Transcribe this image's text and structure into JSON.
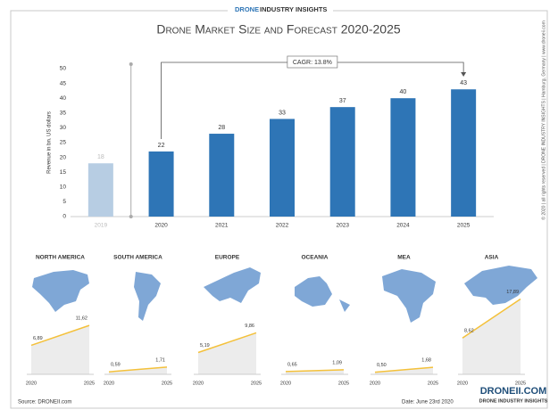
{
  "header": {
    "brand_1": "DRONE",
    "brand_2": "INDUSTRY INSIGHTS"
  },
  "side_note": "© 2020 | all rights reserved | DRONE INDUSTRY INSIGHTS | Hamburg, Germany | www.droneii.com",
  "chart_data": [
    {
      "type": "bar",
      "title": "Drone Market Size and Forecast 2020-2025",
      "y_label": "Revenue in bn. US dollars",
      "categories": [
        "2019",
        "2020",
        "2021",
        "2022",
        "2023",
        "2024",
        "2025"
      ],
      "values": [
        18,
        22,
        28,
        33,
        37,
        40,
        43
      ],
      "colors": [
        "#b7cde3",
        "#2e75b6",
        "#2e75b6",
        "#2e75b6",
        "#2e75b6",
        "#2e75b6",
        "#2e75b6"
      ],
      "ylim": [
        0,
        50
      ],
      "yticks": [
        0,
        5,
        10,
        15,
        20,
        25,
        30,
        35,
        40,
        45,
        50
      ],
      "annotation": "CAGR: 13.8%"
    },
    {
      "type": "line",
      "title": "NORTH AMERICA",
      "categories": [
        "2020",
        "2025"
      ],
      "values": [
        6.89,
        11.62
      ],
      "value_labels": [
        "6,89",
        "11,62"
      ],
      "ylim": [
        0,
        18
      ],
      "color": "#f4c13b"
    },
    {
      "type": "line",
      "title": "SOUTH AMERICA",
      "categories": [
        "2020",
        "2025"
      ],
      "values": [
        0.59,
        1.71
      ],
      "value_labels": [
        "0,59",
        "1,71"
      ],
      "ylim": [
        0,
        18
      ],
      "color": "#f4c13b"
    },
    {
      "type": "line",
      "title": "EUROPE",
      "categories": [
        "2020",
        "2025"
      ],
      "values": [
        5.19,
        9.86
      ],
      "value_labels": [
        "5,19",
        "9,86"
      ],
      "ylim": [
        0,
        18
      ],
      "color": "#f4c13b"
    },
    {
      "type": "line",
      "title": "OCEANIA",
      "categories": [
        "2020",
        "2025"
      ],
      "values": [
        0.65,
        1.09
      ],
      "value_labels": [
        "0,65",
        "1,09"
      ],
      "ylim": [
        0,
        18
      ],
      "color": "#f4c13b"
    },
    {
      "type": "line",
      "title": "MEA",
      "categories": [
        "2020",
        "2025"
      ],
      "values": [
        0.5,
        1.68
      ],
      "value_labels": [
        "0,50",
        "1,68"
      ],
      "ylim": [
        0,
        18
      ],
      "color": "#f4c13b"
    },
    {
      "type": "line",
      "title": "ASIA",
      "categories": [
        "2020",
        "2025"
      ],
      "values": [
        8.62,
        17.89
      ],
      "value_labels": [
        "8,62",
        "17,89"
      ],
      "ylim": [
        0,
        18
      ],
      "color": "#f4c13b"
    }
  ],
  "footer": {
    "source": "Source: DRONEII.com",
    "date": "Date: June 23rd 2020",
    "logo": "DRONEII.COM",
    "tagline": "DRONE INDUSTRY INSIGHTS"
  }
}
